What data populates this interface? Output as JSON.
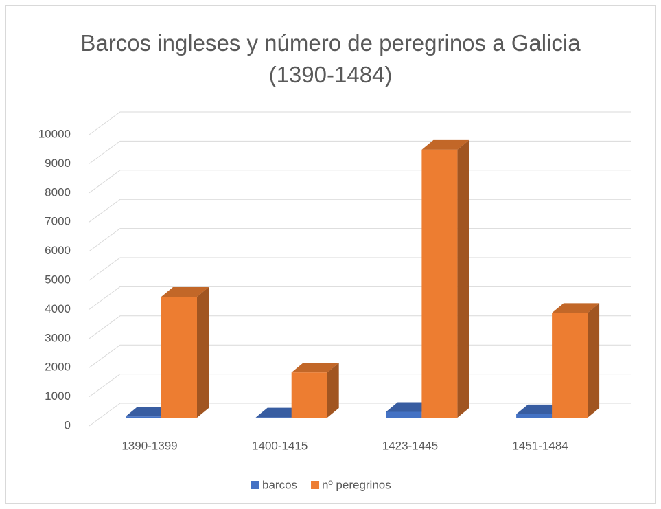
{
  "chart_data": {
    "type": "bar3d",
    "title": "Barcos ingleses y número de peregrinos a Galicia (1390-1484)",
    "categories": [
      "1390-1399",
      "1400-1415",
      "1423-1445",
      "1451-1484"
    ],
    "series": [
      {
        "name": "barcos",
        "color": "#4472c4",
        "values": [
          40,
          10,
          200,
          120
        ]
      },
      {
        "name": "nº peregrinos",
        "color": "#ed7d31",
        "values": [
          4150,
          1550,
          9200,
          3600
        ]
      }
    ],
    "ylim": [
      0,
      10000
    ],
    "yticks": [
      0,
      1000,
      2000,
      3000,
      4000,
      5000,
      6000,
      7000,
      8000,
      9000,
      10000
    ],
    "grid": true,
    "legend": "bottom"
  }
}
